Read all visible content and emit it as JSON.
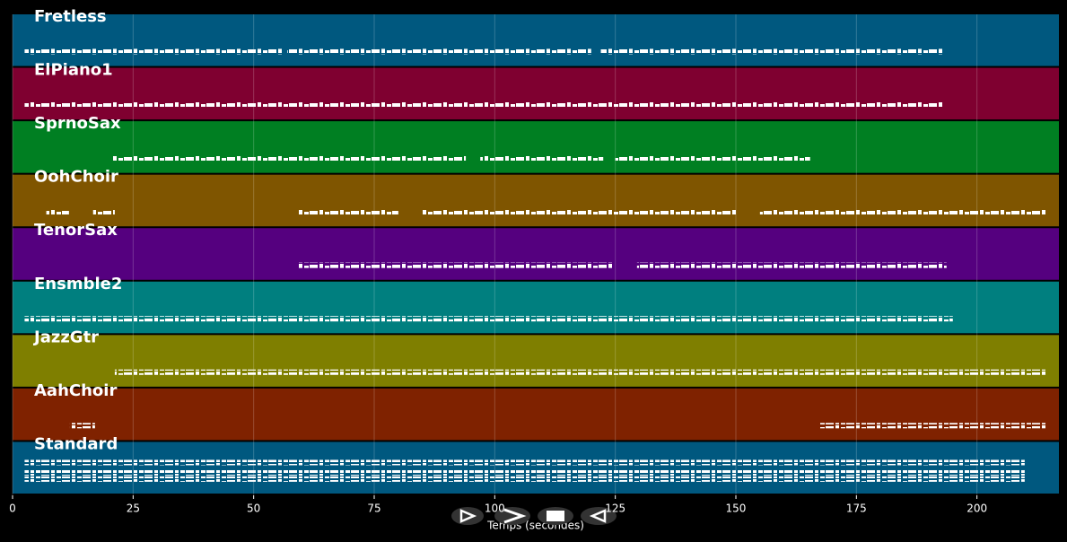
{
  "chart_data": {
    "type": "timeline",
    "xlabel": "Temps (secondes)",
    "xlim": [
      0,
      217
    ],
    "xticks": [
      0,
      25,
      50,
      75,
      100,
      125,
      150,
      175,
      200
    ],
    "grid": true,
    "series": [
      {
        "name": "Fretless",
        "color": "#00587f",
        "segments": [
          [
            2.5,
            56
          ],
          [
            57,
            120
          ],
          [
            122,
            193
          ]
        ]
      },
      {
        "name": "ElPiano1",
        "color": "#7f0030",
        "segments": [
          [
            2.5,
            193
          ]
        ]
      },
      {
        "name": "SprnoSax",
        "color": "#007f22",
        "segments": [
          [
            20.6,
            94
          ],
          [
            97,
            122.5
          ],
          [
            125,
            165.4
          ]
        ]
      },
      {
        "name": "OohChoir",
        "color": "#7f5500",
        "segments": [
          [
            7,
            11.7
          ],
          [
            16.7,
            21.2
          ],
          [
            59,
            80
          ],
          [
            85,
            150
          ],
          [
            155,
            214.5
          ]
        ]
      },
      {
        "name": "TenorSax",
        "color": "#55007f",
        "segments": [
          [
            59,
            124.6
          ],
          [
            129.5,
            193.7
          ]
        ]
      },
      {
        "name": "Ensmble2",
        "color": "#007f7f",
        "segments": [
          [
            2.5,
            195
          ]
        ]
      },
      {
        "name": "JazzGtr",
        "color": "#7f7f00",
        "segments": [
          [
            21.2,
            214.5
          ]
        ]
      },
      {
        "name": "AahChoir",
        "color": "#7f2200",
        "segments": [
          [
            11.9,
            17.1
          ],
          [
            167.4,
            214.5
          ]
        ]
      },
      {
        "name": "Standard",
        "color": "#00587f",
        "segments": [
          [
            2.5,
            209.9
          ]
        ]
      }
    ]
  }
}
